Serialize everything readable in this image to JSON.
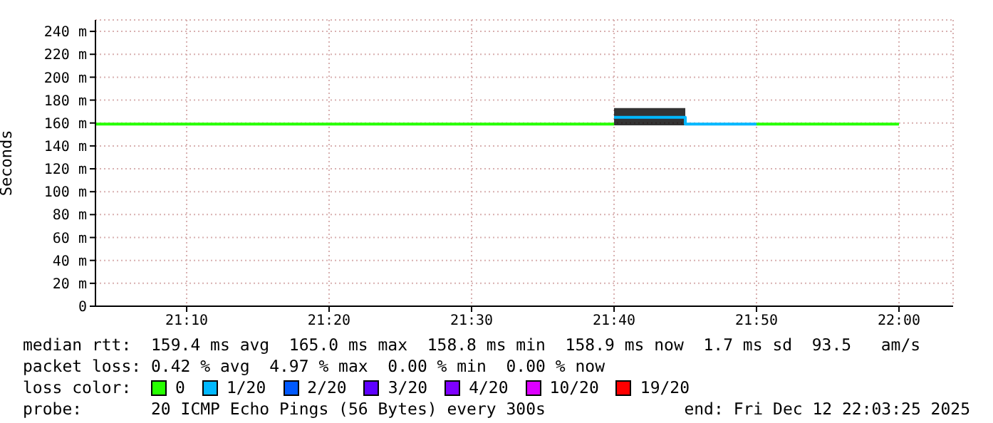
{
  "chart_data": {
    "type": "line",
    "ylabel": "Seconds",
    "xlim": [
      21.06,
      22.0633
    ],
    "xticks": [
      {
        "value": 21.1667,
        "label": "21:10"
      },
      {
        "value": 21.3333,
        "label": "21:20"
      },
      {
        "value": 21.5,
        "label": "21:30"
      },
      {
        "value": 21.6667,
        "label": "21:40"
      },
      {
        "value": 21.8333,
        "label": "21:50"
      },
      {
        "value": 22.0,
        "label": "22:00"
      }
    ],
    "ylim": [
      0,
      250
    ],
    "yticks": [
      0,
      {
        "value": 20,
        "label": "20 m"
      },
      {
        "value": 40,
        "label": "40 m"
      },
      {
        "value": 60,
        "label": "60 m"
      },
      {
        "value": 80,
        "label": "80 m"
      },
      {
        "value": 100,
        "label": "100 m"
      },
      {
        "value": 120,
        "label": "120 m"
      },
      {
        "value": 140,
        "label": "140 m"
      },
      {
        "value": 160,
        "label": "160 m"
      },
      {
        "value": 180,
        "label": "180 m"
      },
      {
        "value": 200,
        "label": "200 m"
      },
      {
        "value": 220,
        "label": "220 m"
      },
      {
        "value": 240,
        "label": "240 m"
      }
    ],
    "grid": true,
    "legend": "bottom",
    "legend_title": "loss color:",
    "series": [
      {
        "name": "0",
        "color": "#26ff00",
        "x": [
          21.06,
          21.6667,
          21.75,
          21.8333,
          22.0
        ],
        "values": [
          159,
          159,
          null,
          159,
          159
        ]
      },
      {
        "name": "1/20",
        "color": "#00b8ff",
        "x": [
          21.6667,
          21.75,
          21.75,
          21.8333
        ],
        "values": [
          165,
          165,
          159,
          159
        ],
        "lower": [
          158,
          158,
          null,
          null
        ],
        "upper": [
          173,
          173,
          null,
          null
        ]
      },
      {
        "name": "2/20",
        "color": "#0059ff"
      },
      {
        "name": "3/20",
        "color": "#5e00ff"
      },
      {
        "name": "4/20",
        "color": "#7e00ff"
      },
      {
        "name": "10/20",
        "color": "#dd00ff"
      },
      {
        "name": "19/20",
        "color": "#ff0000"
      }
    ],
    "annotations": [
      "median rtt:  159.4 ms avg  165.0 ms max  158.8 ms min  158.9 ms now  1.7 ms sd  93.5   am/s",
      "packet loss: 0.42 % avg  4.97 % max  0.00 % min  0.00 % now",
      "probe:       20 ICMP Echo Pings (56 Bytes) every 300s",
      "end: Fri Dec 12 22:03:25 2025"
    ]
  }
}
